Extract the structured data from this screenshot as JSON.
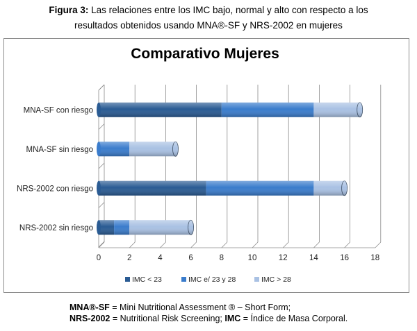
{
  "caption": {
    "label": "Figura 3:",
    "line1": "Las relaciones entre los IMC bajo, normal y alto con respecto a los",
    "line2": "resultados obtenidos usando MNA®-SF y NRS-2002 en mujeres"
  },
  "chart_data": {
    "type": "bar",
    "orientation": "horizontal",
    "stacked": true,
    "style": "3d-cylinder",
    "title": "Comparativo Mujeres",
    "categories": [
      "MNA-SF con riesgo",
      "MNA-SF sin riesgo",
      "NRS-2002 con riesgo",
      "NRS-2002 sin riesgo"
    ],
    "series": [
      {
        "name": "IMC < 23",
        "color": "#2a5b93",
        "values": [
          8,
          0,
          7,
          1
        ]
      },
      {
        "name": "IMC e/ 23 y 28",
        "color": "#3a7ccc",
        "values": [
          6,
          2,
          7,
          1
        ]
      },
      {
        "name": "IMC > 28",
        "color": "#a9c1e3",
        "values": [
          3,
          3,
          2,
          4
        ]
      }
    ],
    "x_ticks": [
      "0",
      "2",
      "4",
      "6",
      "8",
      "10",
      "12",
      "14",
      "16",
      "18"
    ],
    "xlim": [
      0,
      18
    ],
    "grid": true,
    "legend_position": "bottom"
  },
  "notes": {
    "line1_bold": "MNA®-SF",
    "line1_text": " = Mini Nutritional Assessment ® – Short Form;",
    "line2_bold_a": "NRS-2002",
    "line2_text_a": " = Nutritional Risk Screening; ",
    "line2_bold_b": "IMC",
    "line2_text_b": " = Índice de Masa Corporal."
  }
}
